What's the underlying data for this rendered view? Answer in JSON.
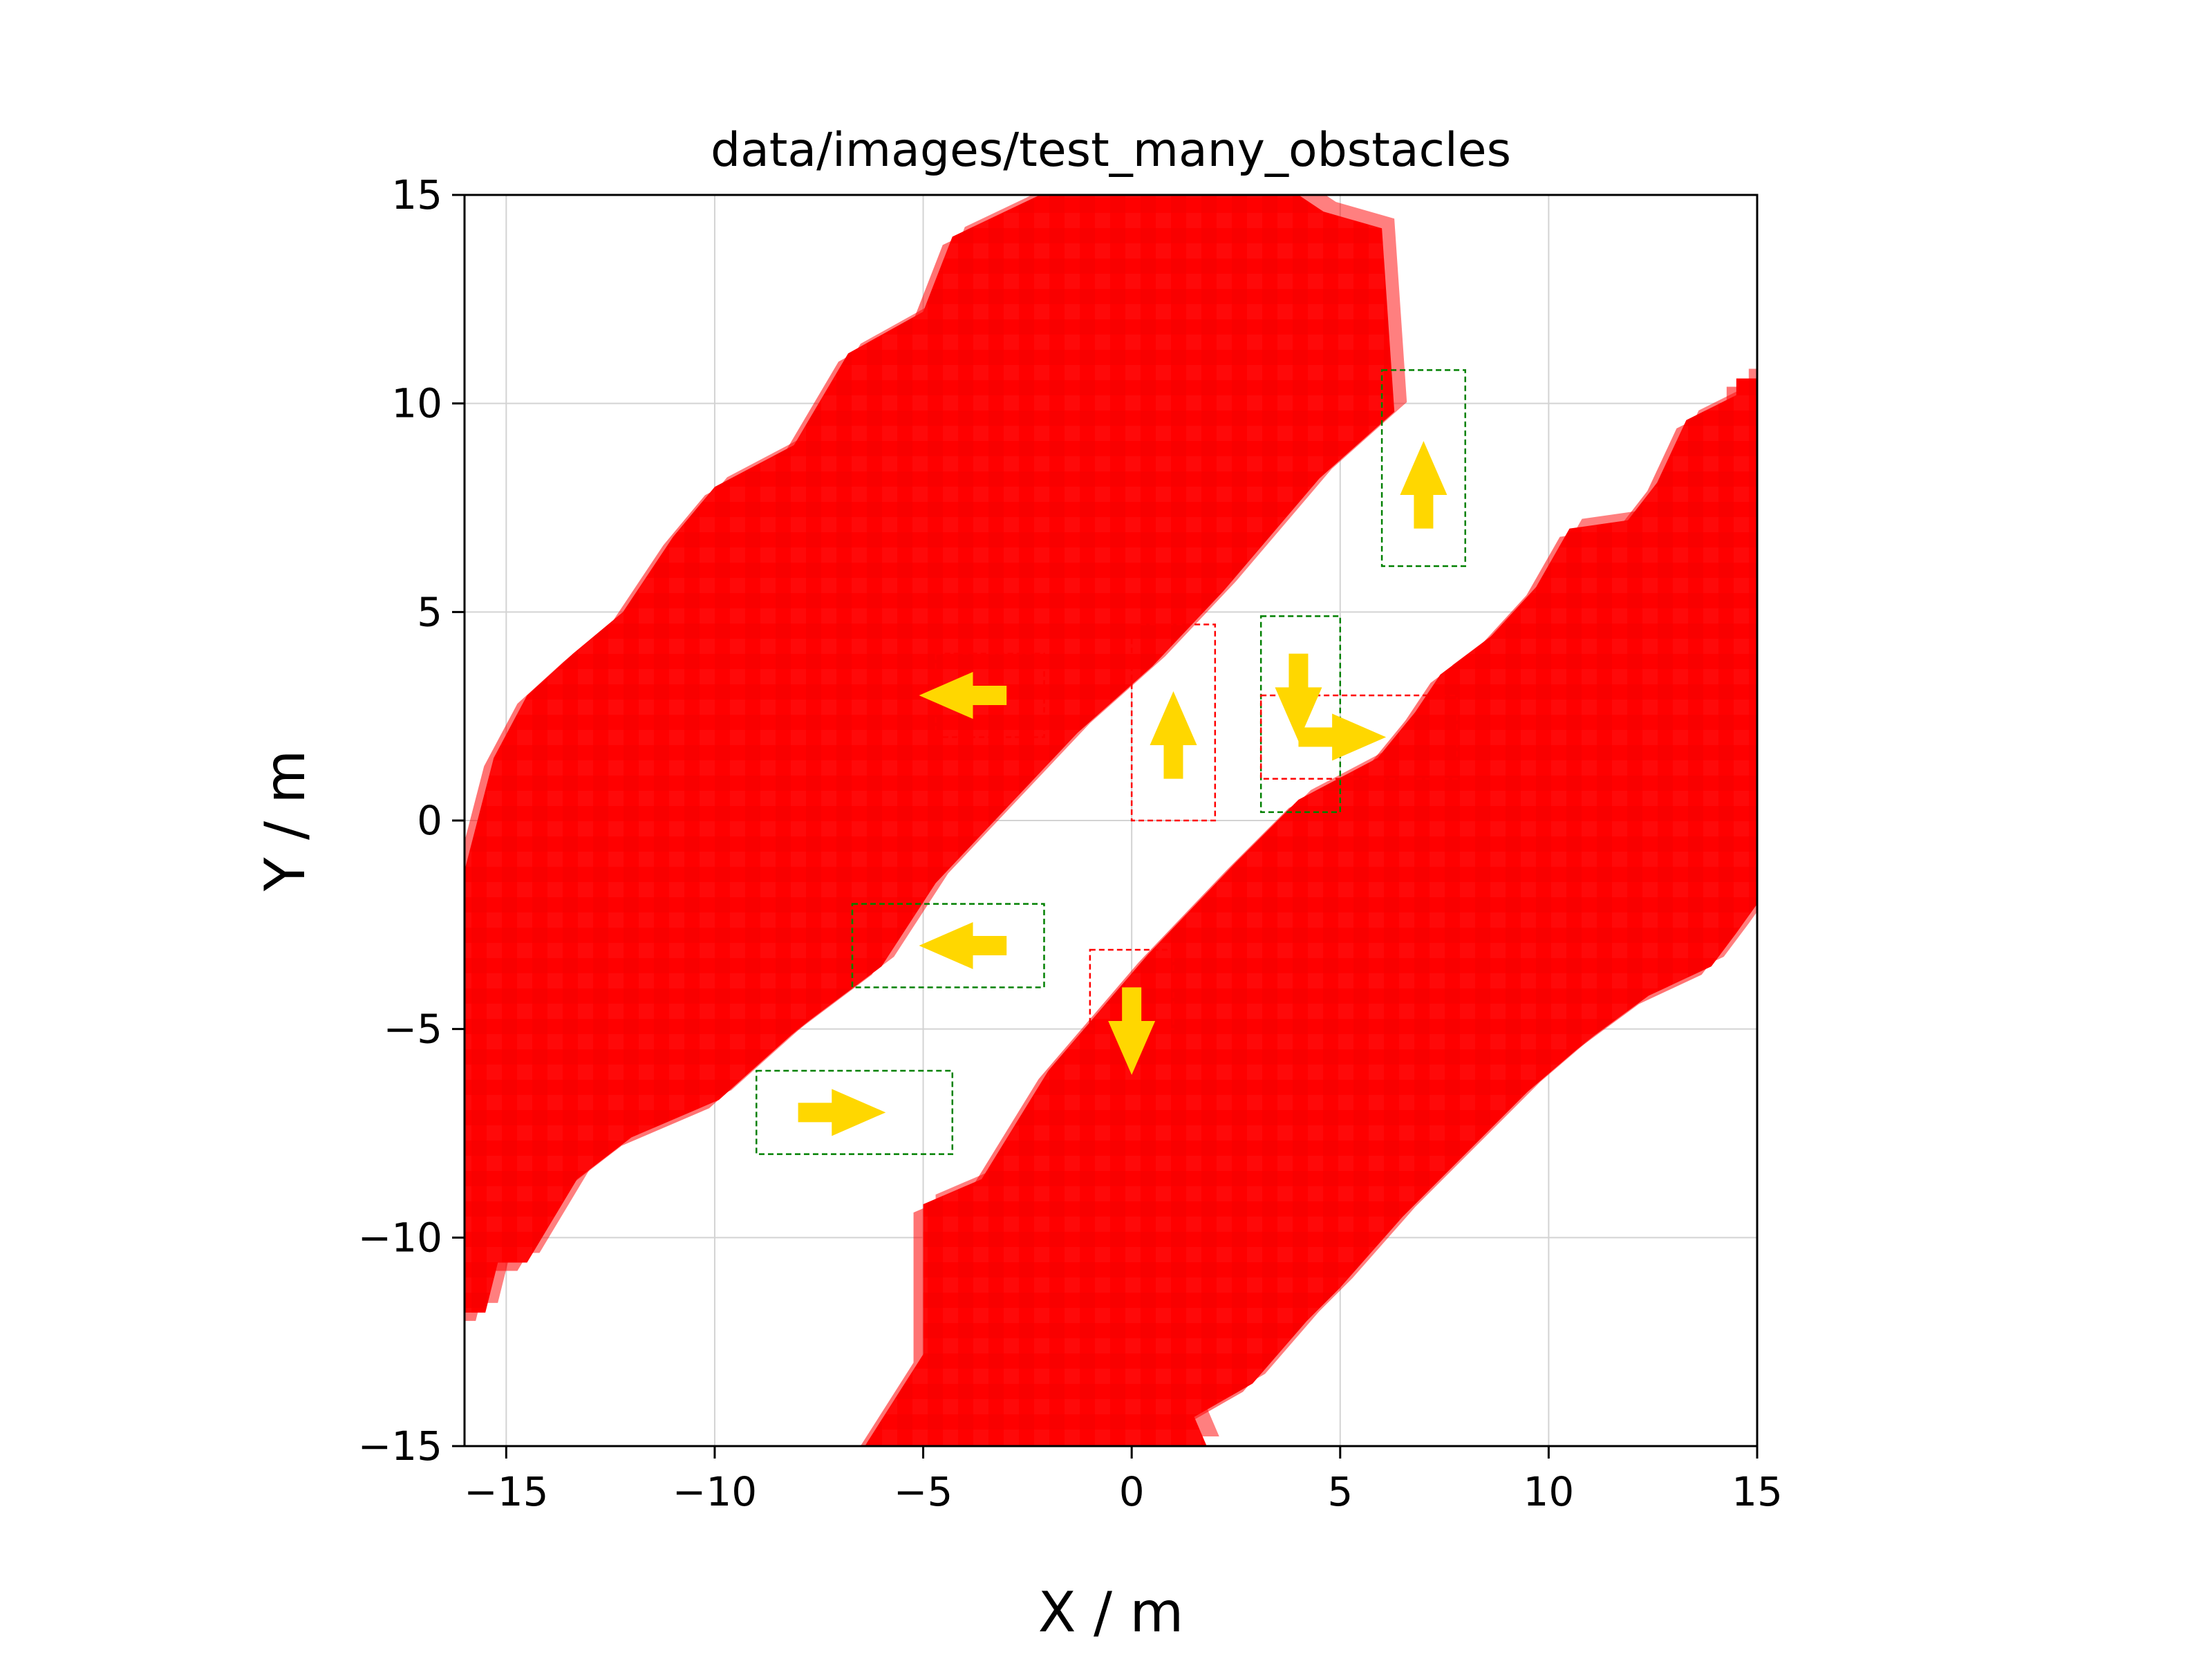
{
  "chart_data": {
    "type": "scatter",
    "title": "data/images/test_many_obstacles",
    "xlabel": "X / m",
    "ylabel": "Y / m",
    "xlim": [
      -16,
      15
    ],
    "ylim": [
      -15,
      15
    ],
    "xticks": [
      -15,
      -10,
      -5,
      0,
      5,
      10,
      15
    ],
    "yticks": [
      -15,
      -10,
      -5,
      0,
      5,
      10,
      15
    ],
    "xtick_labels": [
      "−15",
      "−10",
      "−5",
      "0",
      "5",
      "10",
      "15"
    ],
    "ytick_labels": [
      "−15",
      "−10",
      "−5",
      "0",
      "5",
      "10",
      "15"
    ],
    "grid": true,
    "colors": {
      "obstacle": "#ff0000",
      "arrow": "#ffd700",
      "box_green": "#008000",
      "box_red": "#ff0000",
      "grid": "#d3d3d3"
    },
    "obstacle_bands": [
      {
        "name": "upper-left-band",
        "polygon": [
          [
            -16,
            -1.2
          ],
          [
            -16,
            -11.8
          ],
          [
            -15.5,
            -11.8
          ],
          [
            -15.2,
            -10.6
          ],
          [
            -14.5,
            -10.6
          ],
          [
            -13.3,
            -8.6
          ],
          [
            -12,
            -7.6
          ],
          [
            -9.9,
            -6.7
          ],
          [
            -8,
            -5
          ],
          [
            -6,
            -3.5
          ],
          [
            -4.7,
            -1.5
          ],
          [
            -3,
            0.3
          ],
          [
            -1.3,
            2.1
          ],
          [
            0.5,
            3.7
          ],
          [
            2.2,
            5.5
          ],
          [
            4.5,
            8.2
          ],
          [
            6.3,
            9.8
          ],
          [
            6,
            14.2
          ],
          [
            4.6,
            14.6
          ],
          [
            4,
            15
          ],
          [
            -2.2,
            15
          ],
          [
            -4.3,
            14
          ],
          [
            -5,
            12.2
          ],
          [
            -6.8,
            11.2
          ],
          [
            -8.1,
            9
          ],
          [
            -10,
            8
          ],
          [
            -11,
            6.8
          ],
          [
            -12.2,
            5
          ],
          [
            -13.4,
            4
          ],
          [
            -14.5,
            3
          ],
          [
            -15.3,
            1.5
          ]
        ]
      },
      {
        "name": "lower-right-band",
        "polygon": [
          [
            -6.4,
            -15
          ],
          [
            -5,
            -12.8
          ],
          [
            -5,
            -9.2
          ],
          [
            -3.6,
            -8.6
          ],
          [
            -2,
            -6
          ],
          [
            0.4,
            -3.2
          ],
          [
            2.5,
            -1
          ],
          [
            4,
            0.5
          ],
          [
            5.9,
            1.5
          ],
          [
            6.8,
            2.6
          ],
          [
            7.4,
            3.5
          ],
          [
            8.6,
            4.4
          ],
          [
            9.7,
            5.6
          ],
          [
            10.5,
            7
          ],
          [
            11.9,
            7.2
          ],
          [
            12.6,
            8.1
          ],
          [
            13.3,
            9.6
          ],
          [
            14.5,
            10.2
          ],
          [
            14.5,
            10.6
          ],
          [
            15,
            10.6
          ],
          [
            15,
            -2
          ],
          [
            14.5,
            -2.7
          ],
          [
            13.9,
            -3.5
          ],
          [
            12.4,
            -4.2
          ],
          [
            10.9,
            -5.3
          ],
          [
            9.5,
            -6.5
          ],
          [
            8,
            -8
          ],
          [
            6.5,
            -9.5
          ],
          [
            5,
            -11.2
          ],
          [
            4.2,
            -12
          ],
          [
            2.9,
            -13.5
          ],
          [
            1.5,
            -14.3
          ],
          [
            1.8,
            -15
          ]
        ]
      }
    ],
    "boxes": [
      {
        "color": "green",
        "x0": 6,
        "x1": 8,
        "y0": 6.1,
        "y1": 10.8
      },
      {
        "color": "green",
        "x0": 3.1,
        "x1": 5,
        "y0": 0.2,
        "y1": 4.9
      },
      {
        "color": "red",
        "x0": 0,
        "x1": 2,
        "y0": 0,
        "y1": 4.7
      },
      {
        "color": "red",
        "x0": 3.1,
        "x1": 7.8,
        "y0": 1,
        "y1": 3
      },
      {
        "color": "red",
        "x0": -4.7,
        "x1": -2.1,
        "y0": 2,
        "y1": 4
      },
      {
        "color": "green",
        "x0": -6.7,
        "x1": -2.1,
        "y0": -4,
        "y1": -2
      },
      {
        "color": "red",
        "x0": -1,
        "x1": 1,
        "y0": -5,
        "y1": -3.1
      },
      {
        "color": "green",
        "x0": -9,
        "x1": -4.3,
        "y0": -8,
        "y1": -6
      }
    ],
    "arrows": [
      {
        "x": 7,
        "y": 7,
        "dx": 0,
        "dy": 2.1
      },
      {
        "x": 4,
        "y": 4,
        "dx": 0,
        "dy": -2.1
      },
      {
        "x": 4,
        "y": 2,
        "dx": 2.1,
        "dy": 0
      },
      {
        "x": 1,
        "y": 1,
        "dx": 0,
        "dy": 2.1
      },
      {
        "x": -3,
        "y": 3,
        "dx": -2.1,
        "dy": 0
      },
      {
        "x": -3,
        "y": -3,
        "dx": -2.1,
        "dy": 0
      },
      {
        "x": 0,
        "y": -4,
        "dx": 0,
        "dy": -2.1
      },
      {
        "x": -8,
        "y": -7,
        "dx": 2.1,
        "dy": 0
      }
    ]
  }
}
